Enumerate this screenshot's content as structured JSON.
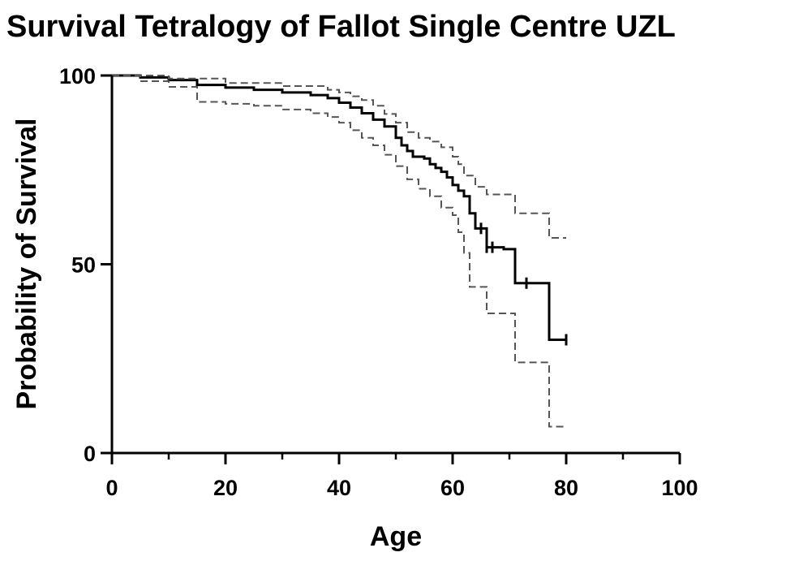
{
  "chart_data": {
    "type": "line",
    "title": "Survival Tetralogy of Fallot Single Centre UZL",
    "xlabel": "Age",
    "ylabel": "Probability of Survival",
    "xlim": [
      0,
      100
    ],
    "ylim": [
      0,
      100
    ],
    "x_ticks": [
      "0",
      "20",
      "40",
      "60",
      "80",
      "100"
    ],
    "y_ticks": [
      "0",
      "50",
      "100"
    ],
    "grid": false,
    "legend": "none",
    "colors": {
      "survival": "#000000",
      "ci": "#555555"
    },
    "series": [
      {
        "role": "survival",
        "style": "solid-step",
        "points": [
          [
            0,
            100
          ],
          [
            5,
            99.5
          ],
          [
            10,
            98.8
          ],
          [
            15,
            97.5
          ],
          [
            20,
            96.8
          ],
          [
            25,
            96.2
          ],
          [
            30,
            95.5
          ],
          [
            35,
            94.8
          ],
          [
            38,
            94
          ],
          [
            40,
            92.8
          ],
          [
            42,
            91.5
          ],
          [
            44,
            90
          ],
          [
            46,
            88.3
          ],
          [
            48,
            86.5
          ],
          [
            50,
            83.5
          ],
          [
            51,
            81.5
          ],
          [
            52,
            80
          ],
          [
            53,
            78.5
          ],
          [
            55,
            78
          ],
          [
            56,
            76.5
          ],
          [
            57,
            75.5
          ],
          [
            58,
            74.5
          ],
          [
            59,
            73
          ],
          [
            60,
            71
          ],
          [
            61,
            69.5
          ],
          [
            62,
            68
          ],
          [
            63,
            63.5
          ],
          [
            64,
            59.5
          ],
          [
            66,
            54.5
          ],
          [
            69,
            54
          ],
          [
            71,
            45
          ],
          [
            77,
            30
          ],
          [
            80,
            30
          ]
        ],
        "censor_ticks": [
          65,
          66,
          67,
          73,
          80
        ]
      },
      {
        "role": "ci",
        "style": "dashed-step",
        "points": [
          [
            0,
            100
          ],
          [
            10,
            99.2
          ],
          [
            20,
            98
          ],
          [
            30,
            97.2
          ],
          [
            38,
            96.2
          ],
          [
            40,
            95.5
          ],
          [
            42,
            94.5
          ],
          [
            44,
            93.5
          ],
          [
            46,
            92
          ],
          [
            48,
            89.8
          ],
          [
            50,
            87.5
          ],
          [
            52,
            85
          ],
          [
            54,
            83.5
          ],
          [
            56,
            82.5
          ],
          [
            58,
            81
          ],
          [
            60,
            78.5
          ],
          [
            61,
            76.5
          ],
          [
            62,
            73.5
          ],
          [
            64,
            70.5
          ],
          [
            66,
            68.5
          ],
          [
            71,
            63.5
          ],
          [
            77,
            57
          ],
          [
            80,
            57
          ]
        ]
      },
      {
        "role": "ci",
        "style": "dashed-step",
        "points": [
          [
            0,
            100
          ],
          [
            5,
            98.5
          ],
          [
            10,
            97
          ],
          [
            15,
            93
          ],
          [
            20,
            92.5
          ],
          [
            25,
            92
          ],
          [
            30,
            91
          ],
          [
            35,
            90
          ],
          [
            38,
            89
          ],
          [
            40,
            87.5
          ],
          [
            42,
            85.5
          ],
          [
            44,
            83.5
          ],
          [
            46,
            81.5
          ],
          [
            48,
            79
          ],
          [
            50,
            76
          ],
          [
            52,
            72.5
          ],
          [
            54,
            70
          ],
          [
            56,
            68
          ],
          [
            58,
            65
          ],
          [
            60,
            63
          ],
          [
            61,
            58.5
          ],
          [
            62,
            53
          ],
          [
            63,
            44
          ],
          [
            66,
            37
          ],
          [
            71,
            24
          ],
          [
            77,
            7
          ],
          [
            80,
            7
          ]
        ]
      }
    ]
  }
}
